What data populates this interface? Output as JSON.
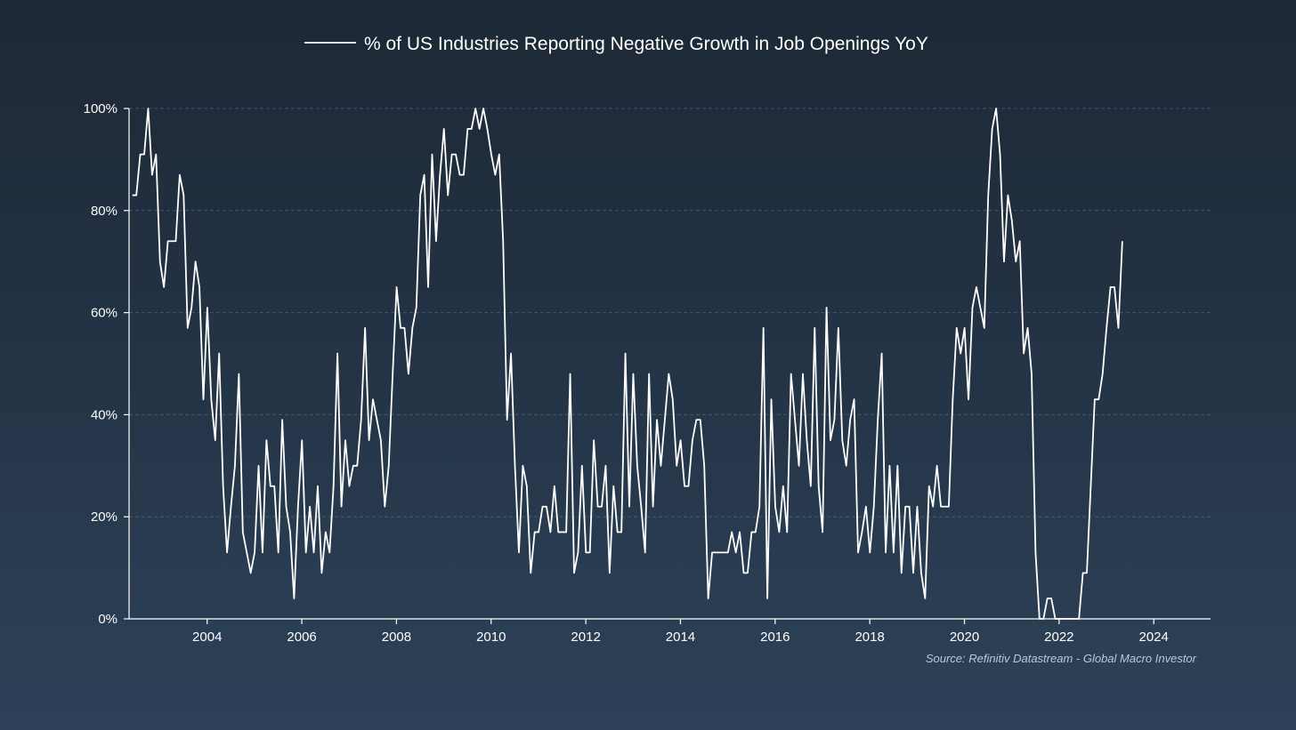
{
  "colors": {
    "background_top": "#1d2836",
    "background_bottom": "#2d4259",
    "series": "#ffffff",
    "source": "#b9c9dd"
  },
  "chart_data": {
    "type": "line",
    "title": "",
    "xlabel": "",
    "ylabel": "",
    "legend": "top-center",
    "grid": true,
    "y_tick_labels": [
      "0%",
      "20%",
      "40%",
      "60%",
      "80%",
      "100%"
    ],
    "x_tick_labels": [
      "2004",
      "2006",
      "2008",
      "2010",
      "2012",
      "2014",
      "2016",
      "2018",
      "2020",
      "2022",
      "2024"
    ],
    "ylim": [
      0,
      100
    ],
    "xlim": [
      2002.35,
      2025.2
    ],
    "source": "Source: Refinitiv Datastream - Global Macro Investor",
    "series": [
      {
        "name": "% of US Industries Reporting Negative Growth in Job Openings YoY",
        "x_start": 2002.42,
        "x_step": 0.08333,
        "values": [
          83,
          83,
          91,
          91,
          100,
          87,
          91,
          70,
          65,
          74,
          74,
          74,
          87,
          83,
          57,
          61,
          70,
          65,
          43,
          61,
          43,
          35,
          52,
          26,
          13,
          22,
          30,
          48,
          17,
          13,
          9,
          13,
          30,
          13,
          35,
          26,
          26,
          13,
          39,
          22,
          17,
          4,
          22,
          35,
          13,
          22,
          13,
          26,
          9,
          17,
          13,
          26,
          52,
          22,
          35,
          26,
          30,
          30,
          39,
          57,
          35,
          43,
          39,
          35,
          22,
          30,
          48,
          65,
          57,
          57,
          48,
          57,
          61,
          83,
          87,
          65,
          91,
          74,
          87,
          96,
          83,
          91,
          91,
          87,
          87,
          96,
          96,
          100,
          96,
          100,
          96,
          91,
          87,
          91,
          74,
          39,
          52,
          30,
          13,
          30,
          26,
          9,
          17,
          17,
          22,
          22,
          17,
          26,
          17,
          17,
          17,
          48,
          9,
          13,
          30,
          13,
          13,
          35,
          22,
          22,
          30,
          9,
          26,
          17,
          17,
          52,
          22,
          48,
          30,
          22,
          13,
          48,
          22,
          39,
          30,
          39,
          48,
          43,
          30,
          35,
          26,
          26,
          35,
          39,
          39,
          30,
          4,
          13,
          13,
          13,
          13,
          13,
          17,
          13,
          17,
          9,
          9,
          17,
          17,
          22,
          57,
          4,
          43,
          22,
          17,
          26,
          17,
          48,
          39,
          30,
          48,
          35,
          26,
          57,
          26,
          17,
          61,
          35,
          39,
          57,
          35,
          30,
          39,
          43,
          13,
          17,
          22,
          13,
          22,
          39,
          52,
          13,
          30,
          13,
          30,
          9,
          22,
          22,
          9,
          22,
          9,
          4,
          26,
          22,
          30,
          22,
          22,
          22,
          43,
          57,
          52,
          57,
          43,
          61,
          65,
          61,
          57,
          83,
          96,
          100,
          91,
          70,
          83,
          78,
          70,
          74,
          52,
          57,
          48,
          13,
          0,
          0,
          4,
          4,
          0,
          0,
          0,
          0,
          0,
          0,
          0,
          9,
          9,
          26,
          43,
          43,
          48,
          57,
          65,
          65,
          57,
          74
        ]
      }
    ]
  }
}
